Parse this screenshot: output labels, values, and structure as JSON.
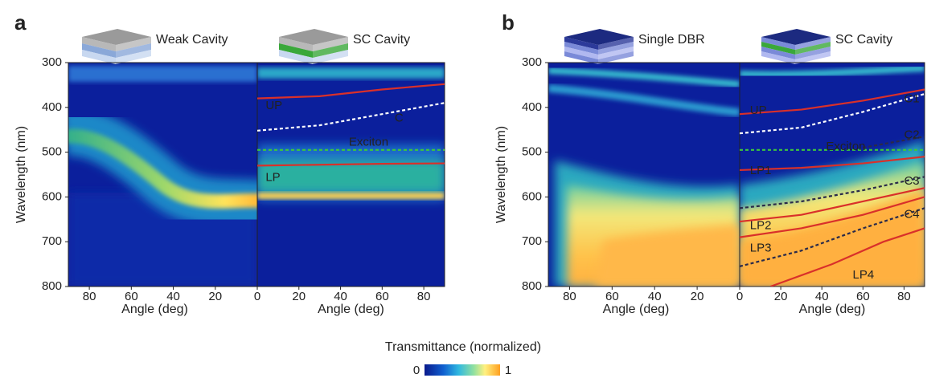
{
  "figure": {
    "panels": [
      "a",
      "b"
    ],
    "colorbar": {
      "label": "Transmittance (normalized)",
      "ticks": [
        0,
        1
      ]
    }
  },
  "chart_data": [
    {
      "type": "heatmap",
      "title": "Weak Cavity",
      "xlabel": "Angle (deg)",
      "ylabel": "Wavelength (nm)",
      "xlim": [
        90,
        0
      ],
      "xticks": [
        80,
        60,
        40,
        20
      ],
      "ylim": [
        800,
        300
      ],
      "yticks": [
        300,
        400,
        500,
        600,
        700,
        800
      ]
    },
    {
      "type": "heatmap",
      "title": "SC Cavity",
      "xlabel": "Angle (deg)",
      "xlim": [
        0,
        90
      ],
      "xticks": [
        0,
        20,
        40,
        60,
        80
      ],
      "ylim": [
        800,
        300
      ],
      "curves": [
        {
          "color": "#d9302a",
          "dashed": false,
          "x": [
            0,
            30,
            60,
            90
          ],
          "values": [
            380,
            375,
            360,
            348
          ]
        },
        {
          "color": "#ffffff",
          "dashed": true,
          "x": [
            0,
            30,
            60,
            90
          ],
          "values": [
            452,
            440,
            415,
            390
          ]
        },
        {
          "color": "#3cc83c",
          "dashed": true,
          "x": [
            0,
            90
          ],
          "values": [
            495,
            495
          ]
        },
        {
          "color": "#d9302a",
          "dashed": false,
          "x": [
            0,
            30,
            60,
            90
          ],
          "values": [
            530,
            528,
            526,
            525
          ]
        }
      ],
      "annotations": [
        {
          "text": "UP",
          "x": 4,
          "y": 397,
          "color": "#c02060"
        },
        {
          "text": "C",
          "x": 66,
          "y": 425,
          "color": "#ffffff"
        },
        {
          "text": "Exciton",
          "x": 44,
          "y": 478,
          "color": "#3cc83c"
        },
        {
          "text": "LP",
          "x": 4,
          "y": 557,
          "color": "#d9302a"
        }
      ]
    },
    {
      "type": "heatmap",
      "title": "Single DBR",
      "xlabel": "Angle (deg)",
      "ylabel": "Wavelength (nm)",
      "xlim": [
        90,
        0
      ],
      "xticks": [
        80,
        60,
        40,
        20
      ],
      "ylim": [
        800,
        300
      ],
      "yticks": [
        300,
        400,
        500,
        600,
        700,
        800
      ]
    },
    {
      "type": "heatmap",
      "title": "SC Cavity",
      "xlabel": "Angle (deg)",
      "xlim": [
        0,
        90
      ],
      "xticks": [
        0,
        20,
        40,
        60,
        80
      ],
      "ylim": [
        800,
        300
      ],
      "curves": [
        {
          "color": "#d9302a",
          "dashed": false,
          "x": [
            0,
            30,
            60,
            90
          ],
          "values": [
            415,
            405,
            385,
            360
          ]
        },
        {
          "color": "#ffffff",
          "dashed": true,
          "x": [
            0,
            30,
            60,
            90
          ],
          "values": [
            458,
            445,
            410,
            370
          ]
        },
        {
          "color": "#2a2a4a",
          "dashed": true,
          "x": [
            60,
            90
          ],
          "values": [
            490,
            465
          ]
        },
        {
          "color": "#3cc83c",
          "dashed": true,
          "x": [
            0,
            90
          ],
          "values": [
            495,
            495
          ]
        },
        {
          "color": "#d9302a",
          "dashed": false,
          "x": [
            0,
            30,
            60,
            90
          ],
          "values": [
            540,
            535,
            525,
            510
          ]
        },
        {
          "color": "#2a2a4a",
          "dashed": true,
          "x": [
            0,
            30,
            60,
            90
          ],
          "values": [
            625,
            610,
            585,
            555
          ]
        },
        {
          "color": "#d9302a",
          "dashed": false,
          "x": [
            0,
            30,
            60,
            90
          ],
          "values": [
            655,
            640,
            610,
            580
          ]
        },
        {
          "color": "#d9302a",
          "dashed": false,
          "x": [
            0,
            30,
            60,
            90
          ],
          "values": [
            690,
            670,
            640,
            600
          ]
        },
        {
          "color": "#2a2a4a",
          "dashed": true,
          "x": [
            0,
            30,
            60,
            90
          ],
          "values": [
            755,
            720,
            670,
            625
          ]
        },
        {
          "color": "#d9302a",
          "dashed": false,
          "x": [
            15,
            45,
            70,
            90
          ],
          "values": [
            800,
            750,
            700,
            670
          ]
        }
      ],
      "annotations": [
        {
          "text": "UP",
          "x": 5,
          "y": 408,
          "color": "#d9302a"
        },
        {
          "text": "C1",
          "x": 80,
          "y": 382,
          "color": "#ffffff"
        },
        {
          "text": "C2",
          "x": 80,
          "y": 462,
          "color": "#9090a8"
        },
        {
          "text": "Exciton",
          "x": 42,
          "y": 488,
          "color": "#3cc83c"
        },
        {
          "text": "LP1",
          "x": 5,
          "y": 542,
          "color": "#d9302a"
        },
        {
          "text": "C3",
          "x": 80,
          "y": 565,
          "color": "#6a6a80"
        },
        {
          "text": "LP2",
          "x": 5,
          "y": 665,
          "color": "#d9302a"
        },
        {
          "text": "C4",
          "x": 80,
          "y": 640,
          "color": "#6a6a80"
        },
        {
          "text": "LP3",
          "x": 5,
          "y": 715,
          "color": "#d9302a"
        },
        {
          "text": "LP4",
          "x": 55,
          "y": 775,
          "color": "#d9302a"
        }
      ]
    }
  ]
}
